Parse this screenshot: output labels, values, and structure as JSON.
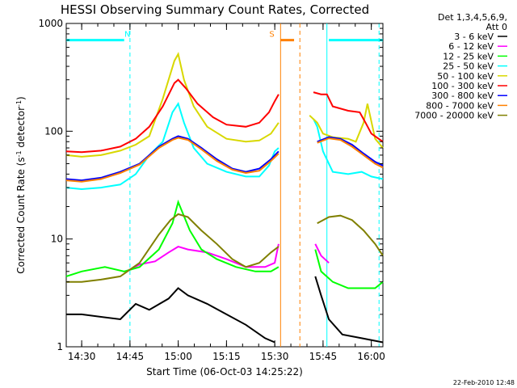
{
  "chart_data": {
    "type": "line",
    "title": "HESSI Observing Summary Count Rates, Corrected",
    "xlabel": "Start Time (06-Oct-03 14:25:22)",
    "ylabel_main": "Corrected Count Rate (s",
    "ylabel_sup1": "-1",
    "ylabel_mid": " detector",
    "ylabel_sup2": "-1",
    "ylabel_end": ")",
    "y_scale": "log",
    "ylim": [
      1,
      1000
    ],
    "xlim": [
      14.42,
      16.06
    ],
    "x_ticks": [
      {
        "t": 14.5,
        "label": "14:30"
      },
      {
        "t": 14.75,
        "label": "14:45"
      },
      {
        "t": 15.0,
        "label": "15:00"
      },
      {
        "t": 15.25,
        "label": "15:15"
      },
      {
        "t": 15.5,
        "label": "15:30"
      },
      {
        "t": 15.75,
        "label": "15:45"
      },
      {
        "t": 16.0,
        "label": "16:00"
      }
    ],
    "y_ticks": [
      {
        "v": 1,
        "label": "1"
      },
      {
        "v": 10,
        "label": "10"
      },
      {
        "v": 100,
        "label": "100"
      },
      {
        "v": 1000,
        "label": "1000"
      }
    ],
    "legend_header": [
      "Det 1,3,4,5,6,9,",
      "Att 0"
    ],
    "legend_position": "right",
    "series": [
      {
        "name": "3 - 6 keV",
        "color": "#000000",
        "segments": [
          [
            [
              14.42,
              2.0
            ],
            [
              14.5,
              2.0
            ],
            [
              14.7,
              1.8
            ],
            [
              14.78,
              2.5
            ],
            [
              14.85,
              2.2
            ],
            [
              14.95,
              2.8
            ],
            [
              15.0,
              3.5
            ],
            [
              15.05,
              3.0
            ],
            [
              15.15,
              2.5
            ],
            [
              15.25,
              2.0
            ],
            [
              15.35,
              1.6
            ],
            [
              15.45,
              1.2
            ],
            [
              15.5,
              1.1
            ]
          ],
          [
            [
              15.71,
              4.5
            ],
            [
              15.74,
              3.0
            ],
            [
              15.78,
              1.8
            ],
            [
              15.85,
              1.3
            ],
            [
              15.95,
              1.2
            ],
            [
              16.06,
              1.1
            ]
          ]
        ]
      },
      {
        "name": "6 - 12 keV",
        "color": "#ff00ff",
        "segments": [
          [
            [
              14.73,
              5.0
            ],
            [
              14.8,
              5.8
            ],
            [
              14.88,
              6.2
            ],
            [
              14.95,
              7.5
            ],
            [
              15.0,
              8.5
            ],
            [
              15.05,
              8.0
            ],
            [
              15.15,
              7.5
            ],
            [
              15.25,
              6.5
            ],
            [
              15.35,
              5.5
            ],
            [
              15.45,
              5.5
            ],
            [
              15.5,
              6.0
            ],
            [
              15.52,
              9.0
            ]
          ],
          [
            [
              15.71,
              9.0
            ],
            [
              15.74,
              7.0
            ],
            [
              15.78,
              6.0
            ]
          ]
        ]
      },
      {
        "name": "12 - 25 keV",
        "color": "#00ff00",
        "segments": [
          [
            [
              14.42,
              4.5
            ],
            [
              14.5,
              5.0
            ],
            [
              14.62,
              5.5
            ],
            [
              14.72,
              5.0
            ],
            [
              14.8,
              5.5
            ],
            [
              14.9,
              8.0
            ],
            [
              14.97,
              14.0
            ],
            [
              15.0,
              22.0
            ],
            [
              15.02,
              18.0
            ],
            [
              15.06,
              12.0
            ],
            [
              15.12,
              8.0
            ],
            [
              15.2,
              6.5
            ],
            [
              15.3,
              5.5
            ],
            [
              15.4,
              5.0
            ],
            [
              15.48,
              5.0
            ],
            [
              15.52,
              5.5
            ]
          ],
          [
            [
              15.71,
              8.0
            ],
            [
              15.74,
              5.0
            ],
            [
              15.8,
              4.0
            ],
            [
              15.88,
              3.5
            ],
            [
              15.96,
              3.5
            ],
            [
              16.02,
              3.5
            ],
            [
              16.06,
              4.0
            ]
          ]
        ]
      },
      {
        "name": "25 - 50 keV",
        "color": "#00ffff",
        "segments": [
          [
            [
              14.42,
              30
            ],
            [
              14.5,
              29
            ],
            [
              14.6,
              30
            ],
            [
              14.7,
              32
            ],
            [
              14.78,
              40
            ],
            [
              14.85,
              60
            ],
            [
              14.92,
              80
            ],
            [
              14.97,
              150
            ],
            [
              15.0,
              180
            ],
            [
              15.03,
              120
            ],
            [
              15.08,
              70
            ],
            [
              15.15,
              50
            ],
            [
              15.25,
              42
            ],
            [
              15.35,
              38
            ],
            [
              15.42,
              38
            ],
            [
              15.47,
              48
            ],
            [
              15.5,
              65
            ],
            [
              15.52,
              70
            ]
          ],
          [
            [
              15.7,
              130
            ],
            [
              15.72,
              110
            ],
            [
              15.75,
              65
            ],
            [
              15.8,
              42
            ],
            [
              15.88,
              40
            ],
            [
              15.95,
              42
            ],
            [
              16.0,
              38
            ],
            [
              16.06,
              36
            ]
          ]
        ]
      },
      {
        "name": "50 - 100 keV",
        "color": "#d8d800",
        "segments": [
          [
            [
              14.42,
              60
            ],
            [
              14.5,
              58
            ],
            [
              14.6,
              60
            ],
            [
              14.7,
              66
            ],
            [
              14.78,
              75
            ],
            [
              14.85,
              90
            ],
            [
              14.92,
              200
            ],
            [
              14.98,
              450
            ],
            [
              15.0,
              520
            ],
            [
              15.03,
              300
            ],
            [
              15.08,
              170
            ],
            [
              15.15,
              110
            ],
            [
              15.25,
              85
            ],
            [
              15.35,
              80
            ],
            [
              15.42,
              82
            ],
            [
              15.48,
              95
            ],
            [
              15.52,
              120
            ]
          ],
          [
            [
              15.68,
              140
            ],
            [
              15.72,
              120
            ],
            [
              15.75,
              95
            ],
            [
              15.8,
              88
            ],
            [
              15.88,
              85
            ],
            [
              15.92,
              80
            ],
            [
              15.96,
              120
            ],
            [
              15.98,
              180
            ],
            [
              16.02,
              85
            ],
            [
              16.06,
              70
            ]
          ]
        ]
      },
      {
        "name": "100 - 300 keV",
        "color": "#ff0000",
        "segments": [
          [
            [
              14.42,
              65
            ],
            [
              14.5,
              64
            ],
            [
              14.6,
              66
            ],
            [
              14.7,
              72
            ],
            [
              14.78,
              85
            ],
            [
              14.85,
              110
            ],
            [
              14.92,
              170
            ],
            [
              14.98,
              280
            ],
            [
              15.0,
              300
            ],
            [
              15.04,
              250
            ],
            [
              15.1,
              180
            ],
            [
              15.18,
              135
            ],
            [
              15.25,
              115
            ],
            [
              15.35,
              110
            ],
            [
              15.42,
              120
            ],
            [
              15.47,
              150
            ],
            [
              15.5,
              190
            ],
            [
              15.52,
              220
            ]
          ],
          [
            [
              15.7,
              230
            ],
            [
              15.74,
              220
            ],
            [
              15.77,
              220
            ],
            [
              15.8,
              170
            ],
            [
              15.88,
              155
            ],
            [
              15.94,
              150
            ],
            [
              15.97,
              120
            ],
            [
              16.0,
              95
            ],
            [
              16.06,
              80
            ]
          ]
        ]
      },
      {
        "name": "300 - 800 keV",
        "color": "#0000ff",
        "segments": [
          [
            [
              14.42,
              36
            ],
            [
              14.5,
              35
            ],
            [
              14.6,
              37
            ],
            [
              14.7,
              42
            ],
            [
              14.8,
              50
            ],
            [
              14.9,
              72
            ],
            [
              14.97,
              85
            ],
            [
              15.0,
              90
            ],
            [
              15.05,
              85
            ],
            [
              15.12,
              70
            ],
            [
              15.2,
              55
            ],
            [
              15.28,
              45
            ],
            [
              15.35,
              42
            ],
            [
              15.42,
              45
            ],
            [
              15.48,
              55
            ],
            [
              15.52,
              65
            ]
          ],
          [
            [
              15.72,
              80
            ],
            [
              15.78,
              88
            ],
            [
              15.84,
              85
            ],
            [
              15.9,
              75
            ],
            [
              15.96,
              62
            ],
            [
              16.02,
              52
            ],
            [
              16.06,
              48
            ]
          ]
        ]
      },
      {
        "name": "800 - 7000 keV",
        "color": "#ff8000",
        "segments": [
          [
            [
              14.42,
              35
            ],
            [
              14.5,
              34
            ],
            [
              14.6,
              36
            ],
            [
              14.7,
              41
            ],
            [
              14.8,
              49
            ],
            [
              14.9,
              70
            ],
            [
              14.97,
              83
            ],
            [
              15.0,
              87
            ],
            [
              15.05,
              83
            ],
            [
              15.12,
              68
            ],
            [
              15.2,
              53
            ],
            [
              15.28,
              44
            ],
            [
              15.35,
              41
            ],
            [
              15.42,
              43
            ],
            [
              15.48,
              53
            ],
            [
              15.52,
              62
            ]
          ],
          [
            [
              15.72,
              78
            ],
            [
              15.78,
              86
            ],
            [
              15.84,
              83
            ],
            [
              15.9,
              72
            ],
            [
              15.96,
              60
            ],
            [
              16.02,
              50
            ],
            [
              16.06,
              46
            ]
          ]
        ]
      },
      {
        "name": "7000 - 20000 keV",
        "color": "#808000",
        "segments": [
          [
            [
              14.42,
              4.0
            ],
            [
              14.5,
              4.0
            ],
            [
              14.6,
              4.2
            ],
            [
              14.7,
              4.5
            ],
            [
              14.8,
              6.0
            ],
            [
              14.9,
              11.0
            ],
            [
              14.96,
              15.0
            ],
            [
              15.0,
              17.0
            ],
            [
              15.05,
              16.0
            ],
            [
              15.12,
              12.0
            ],
            [
              15.2,
              9.0
            ],
            [
              15.28,
              6.5
            ],
            [
              15.35,
              5.5
            ],
            [
              15.42,
              6.0
            ],
            [
              15.48,
              7.5
            ],
            [
              15.52,
              8.5
            ]
          ],
          [
            [
              15.72,
              14.0
            ],
            [
              15.78,
              16.0
            ],
            [
              15.84,
              16.5
            ],
            [
              15.9,
              15.0
            ],
            [
              15.96,
              12.0
            ],
            [
              16.02,
              9.0
            ],
            [
              16.06,
              7.0
            ]
          ]
        ]
      }
    ],
    "markers": [
      {
        "label": "N",
        "color": "#00ffff",
        "style": "solid-bar",
        "t_start": 14.42,
        "t_end": 14.72,
        "y_level": 700
      },
      {
        "label": "",
        "color": "#00ffff",
        "style": "solid-bar",
        "t_start": 15.78,
        "t_end": 16.06,
        "y_level": 700
      },
      {
        "label": "S",
        "color": "#ff8000",
        "style": "solid-bar",
        "t_start": 15.53,
        "t_end": 15.6,
        "y_level": 700
      }
    ],
    "vlines": [
      {
        "t": 14.75,
        "color": "#00ffff",
        "style": "dashed"
      },
      {
        "t": 15.77,
        "color": "#00ffff",
        "style": "solid"
      },
      {
        "t": 16.04,
        "color": "#00ffff",
        "style": "dashed"
      },
      {
        "t": 15.53,
        "color": "#ff8000",
        "style": "solid"
      },
      {
        "t": 15.63,
        "color": "#ff8000",
        "style": "dashed"
      }
    ]
  },
  "footer_date": "22-Feb-2010 12:48"
}
